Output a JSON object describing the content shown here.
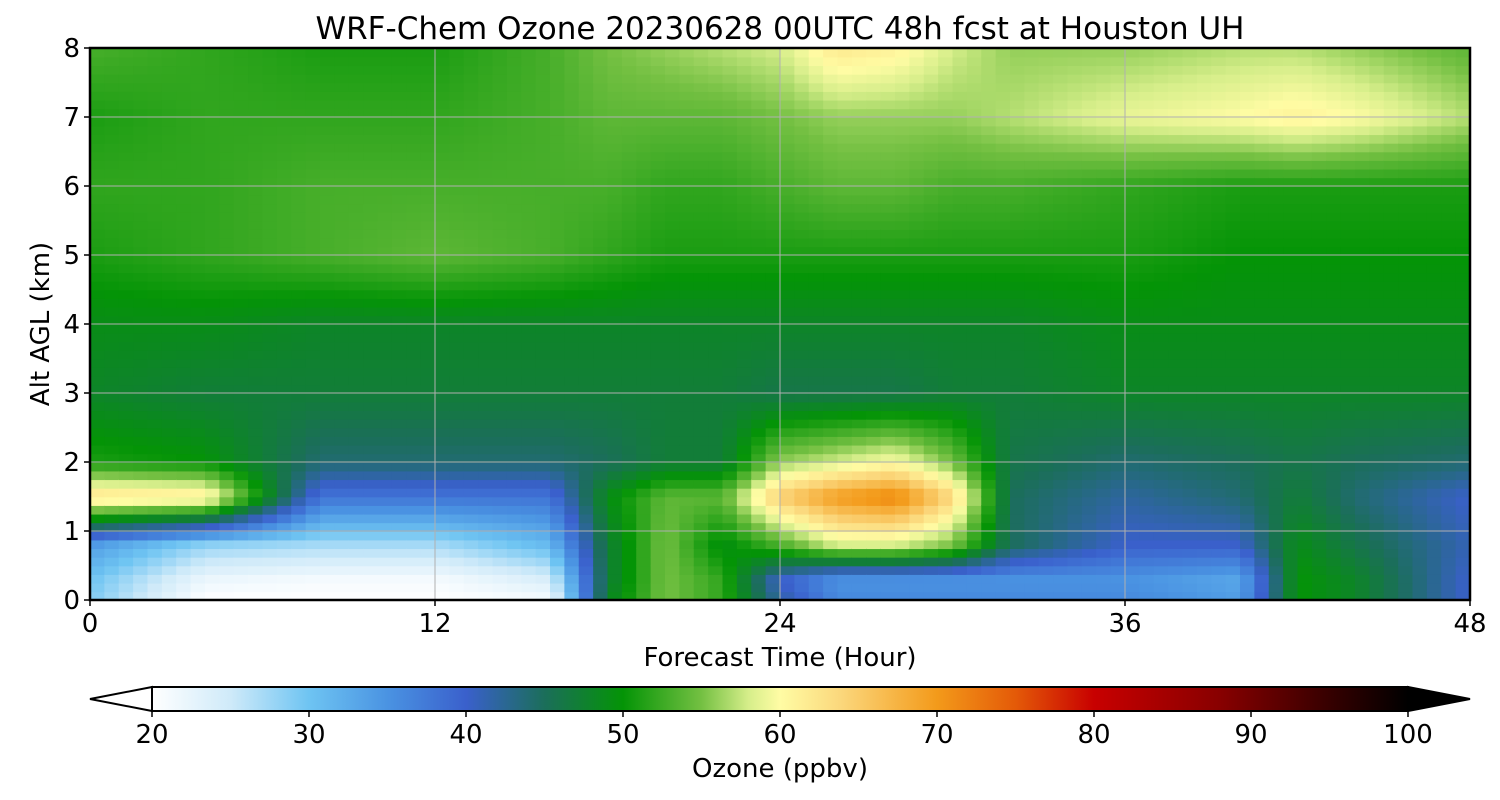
{
  "chart_data": {
    "type": "heatmap",
    "title": "WRF-Chem Ozone  20230628 00UTC 48h fcst at Houston UH",
    "xlabel": "Forecast Time (Hour)",
    "ylabel": "Alt AGL (km)",
    "xlim": [
      0,
      48
    ],
    "ylim": [
      0,
      8
    ],
    "xticks": [
      0,
      12,
      24,
      36,
      48
    ],
    "yticks": [
      0,
      1,
      2,
      3,
      4,
      5,
      6,
      7,
      8
    ],
    "grid": true,
    "x": [
      0,
      4,
      8,
      12,
      16,
      18,
      20,
      22,
      24,
      26,
      28,
      30,
      32,
      36,
      40,
      42,
      44,
      48
    ],
    "y": [
      0,
      0.3,
      0.8,
      1.5,
      2.0,
      3.0,
      4.0,
      5.0,
      6.0,
      7.0,
      8.0
    ],
    "z": [
      [
        29,
        20,
        20,
        20,
        21,
        48,
        55,
        52,
        42,
        36,
        36,
        36,
        36,
        36,
        34,
        50,
        48,
        40
      ],
      [
        30,
        22,
        21,
        21,
        24,
        47,
        55,
        52,
        40,
        35,
        35,
        35,
        35,
        35,
        33,
        50,
        48,
        40
      ],
      [
        34,
        28,
        27,
        27,
        31,
        47,
        55,
        49,
        53,
        58,
        58,
        55,
        45,
        40,
        40,
        49,
        46,
        41
      ],
      [
        63,
        62,
        38,
        38,
        38,
        49,
        54,
        54,
        65,
        70,
        72,
        64,
        45,
        42,
        44,
        47,
        44,
        40
      ],
      [
        51,
        50,
        44,
        44,
        44,
        45,
        47,
        47,
        56,
        58,
        60,
        55,
        46,
        44,
        45,
        46,
        45,
        44
      ],
      [
        48,
        47,
        47,
        47,
        47,
        47,
        47,
        47,
        46,
        46,
        46,
        47,
        47,
        48,
        48,
        48,
        48,
        48
      ],
      [
        49,
        49,
        48,
        48,
        48,
        48,
        48,
        48,
        48,
        48,
        48,
        48,
        48,
        49,
        49,
        49,
        49,
        49
      ],
      [
        51,
        52,
        53,
        54,
        53,
        52,
        51,
        51,
        51,
        51,
        51,
        51,
        51,
        51,
        50,
        50,
        50,
        50
      ],
      [
        52,
        52,
        53,
        53,
        53,
        53,
        52,
        52,
        53,
        54,
        54,
        53,
        53,
        52,
        51,
        51,
        51,
        51
      ],
      [
        51,
        52,
        52,
        52,
        53,
        54,
        54,
        54,
        55,
        56,
        56,
        56,
        57,
        59,
        60,
        61,
        60,
        57
      ],
      [
        53,
        52,
        51,
        51,
        53,
        55,
        56,
        57,
        58,
        62,
        61,
        58,
        56,
        56,
        57,
        57,
        56,
        54
      ]
    ],
    "colorbar": {
      "label": "Ozone  (ppbv)",
      "min": 20,
      "max": 100,
      "ticks": [
        20,
        30,
        40,
        50,
        60,
        70,
        80,
        90,
        100
      ],
      "extend": "both",
      "stops": [
        [
          20,
          "#ffffff"
        ],
        [
          25,
          "#cfeaf9"
        ],
        [
          30,
          "#6ec4f2"
        ],
        [
          35,
          "#4a93e2"
        ],
        [
          40,
          "#3a60cc"
        ],
        [
          45,
          "#1b6e5a"
        ],
        [
          50,
          "#049406"
        ],
        [
          55,
          "#74c042"
        ],
        [
          58,
          "#d6ee8a"
        ],
        [
          60,
          "#fffca4"
        ],
        [
          64,
          "#fbd67a"
        ],
        [
          70,
          "#f39a1a"
        ],
        [
          75,
          "#e45a08"
        ],
        [
          80,
          "#c80000"
        ],
        [
          88,
          "#880000"
        ],
        [
          95,
          "#360000"
        ],
        [
          100,
          "#000000"
        ]
      ]
    }
  }
}
